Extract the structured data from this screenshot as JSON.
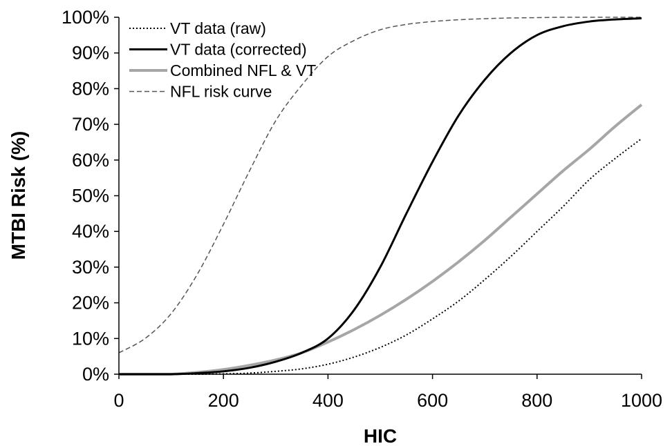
{
  "chart_data": {
    "type": "line",
    "title": "",
    "xlabel": "HIC",
    "ylabel": "MTBI Risk (%)",
    "xlim": [
      0,
      1000
    ],
    "ylim": [
      0,
      100
    ],
    "x_ticks": [
      0,
      200,
      400,
      600,
      800,
      1000
    ],
    "y_ticks": [
      0,
      10,
      20,
      30,
      40,
      50,
      60,
      70,
      80,
      90,
      100
    ],
    "y_tick_suffix": "%",
    "grid": false,
    "legend_position": "top-left",
    "x": [
      0,
      50,
      100,
      150,
      200,
      250,
      300,
      350,
      400,
      450,
      500,
      550,
      600,
      650,
      700,
      750,
      800,
      850,
      900,
      950,
      1000
    ],
    "series": [
      {
        "name": "VT data (raw)",
        "style": "dotted",
        "color": "#000000",
        "values": [
          0,
          0,
          0,
          0,
          0.1,
          0.3,
          0.8,
          1.5,
          2.8,
          4.8,
          7.5,
          11,
          15.5,
          20.5,
          26.5,
          33,
          40,
          47,
          54.5,
          60.5,
          66
        ]
      },
      {
        "name": "VT data (corrected)",
        "style": "solid",
        "color": "#000000",
        "values": [
          0,
          0,
          0,
          0.3,
          0.8,
          1.8,
          3.5,
          6,
          10,
          18,
          30,
          45,
          59.5,
          72.5,
          82.5,
          90,
          95,
          97.5,
          98.8,
          99.4,
          99.7
        ]
      },
      {
        "name": "Combined NFL & VT",
        "style": "solid-thick",
        "color": "#a6a6a6",
        "values": [
          0,
          0,
          0,
          0.5,
          1.3,
          2.5,
          4,
          6,
          9,
          12.5,
          16.5,
          21,
          26,
          31.5,
          37.5,
          44,
          50.5,
          57,
          63,
          69.5,
          75.5
        ]
      },
      {
        "name": "NFL risk curve",
        "style": "dashed",
        "color": "#555555",
        "values": [
          6,
          10,
          17,
          28,
          42,
          57,
          71,
          81,
          89,
          93.5,
          96.5,
          98,
          98.8,
          99.3,
          99.6,
          99.8,
          99.9,
          100,
          100,
          100,
          100
        ]
      }
    ]
  }
}
